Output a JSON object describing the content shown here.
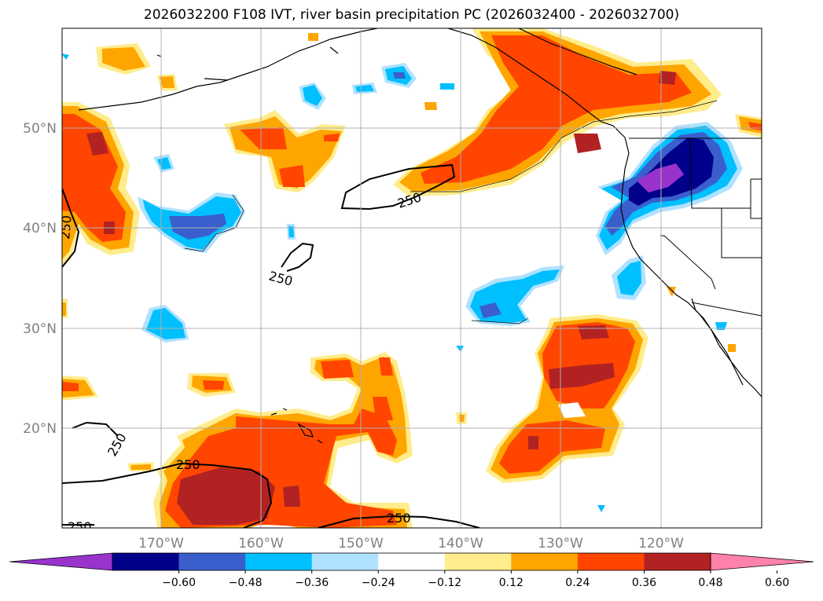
{
  "title": "2026032200 F108 IVT, river basin precipitation PC (2026032400 - 2026032700)",
  "lat_labels": [
    "50°N",
    "40°N",
    "30°N",
    "20°N"
  ],
  "lon_labels": [
    "170°W",
    "160°W",
    "150°W",
    "140°W",
    "130°W",
    "120°W"
  ],
  "ivt_contour_label": "250",
  "colorbar": {
    "ticks": [
      "−0.60",
      "−0.48",
      "−0.36",
      "−0.24",
      "−0.12",
      "0.12",
      "0.24",
      "0.36",
      "0.48",
      "0.60"
    ],
    "colors": [
      "#9933cc",
      "#00008b",
      "#3a5fcd",
      "#00bfff",
      "#b0e2ff",
      "#ffffff",
      "#ffec8b",
      "#ffa500",
      "#ff4500",
      "#b22222",
      "#ff82ab"
    ]
  },
  "colors": {
    "positive_light": "#ffec8b",
    "positive_mid": "#ffa500",
    "positive_strong": "#ff4500",
    "positive_max": "#b22222",
    "negative_light": "#b0e2ff",
    "negative_mid": "#00bfff",
    "negative_strong": "#3a5fcd",
    "negative_max": "#00008b",
    "negative_extreme": "#9933cc"
  }
}
